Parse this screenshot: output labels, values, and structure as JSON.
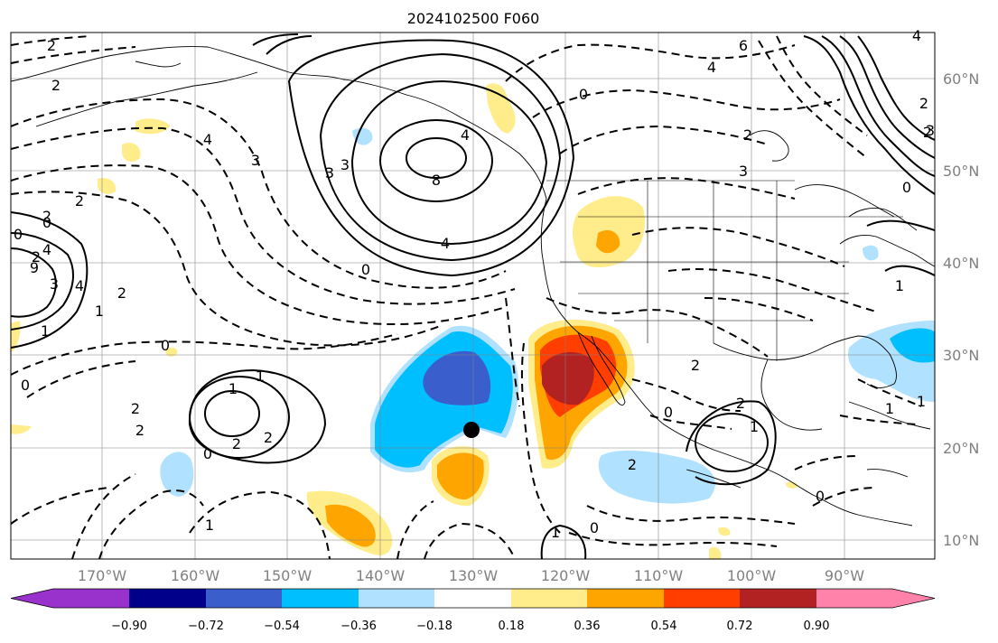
{
  "title": "2024102500 F060",
  "lon_labels": [
    "170°W",
    "160°W",
    "150°W",
    "140°W",
    "130°W",
    "120°W",
    "110°W",
    "100°W",
    "90°W"
  ],
  "lat_labels": [
    "60°N",
    "50°N",
    "40°N",
    "30°N",
    "20°N",
    "10°N"
  ],
  "colorbar": {
    "colors": [
      "#9932CC",
      "#00008B",
      "#3A5FCD",
      "#00BFFF",
      "#B0E2FF",
      "#FFFFFF",
      "#FFEC8B",
      "#FFA500",
      "#FF3E00",
      "#B22222",
      "#FF82AB"
    ],
    "tick_labels": [
      "−0.90",
      "−0.72",
      "−0.54",
      "−0.36",
      "−0.18",
      "0.18",
      "0.36",
      "0.54",
      "0.72",
      "0.90"
    ]
  },
  "contour_labels": [
    "2",
    "2",
    "4",
    "3",
    "3",
    "6",
    "4",
    "4",
    "0",
    "4",
    "2",
    "3",
    "2",
    "2",
    "0",
    "8",
    "3",
    "4",
    "0",
    "0",
    "2",
    "3",
    "4",
    "9",
    "4",
    "1",
    "1",
    "2",
    "0",
    "0",
    "2",
    "2",
    "1",
    "1",
    "2",
    "2",
    "0",
    "1",
    "2",
    "0",
    "1",
    "2",
    "1",
    "2",
    "0",
    "0",
    "1",
    "1",
    "0",
    "3",
    "2",
    "2",
    "1"
  ],
  "marker": "black-dot"
}
